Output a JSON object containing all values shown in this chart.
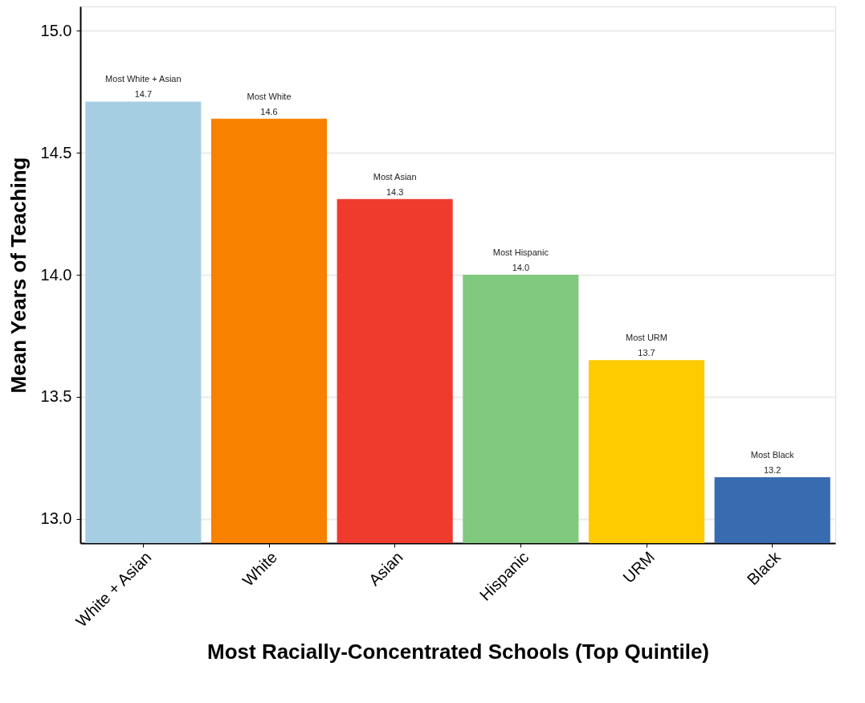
{
  "chart_data": {
    "type": "bar",
    "xlabel": "Most Racially-Concentrated Schools (Top Quintile)",
    "ylabel": "Mean Years of Teaching",
    "categories": [
      "White + Asian",
      "White",
      "Asian",
      "Hispanic",
      "URM",
      "Black"
    ],
    "values": [
      14.71,
      14.64,
      14.31,
      14.0,
      13.65,
      13.17
    ],
    "colors": [
      "#a6cee3",
      "#f98100",
      "#ee3b2e",
      "#80c97f",
      "#fdcb00",
      "#386cb0"
    ],
    "value_labels": [
      "14.7",
      "14.6",
      "14.3",
      "14.0",
      "13.7",
      "13.2"
    ],
    "annotations": [
      {
        "text": "Most White + Asian",
        "x": "White + Asian",
        "y": 14.71
      },
      {
        "text": "Most White",
        "x": "White",
        "y": 14.64
      },
      {
        "text": "Most Asian",
        "x": "Asian",
        "y": 14.31
      },
      {
        "text": "Most Hispanic",
        "x": "Hispanic",
        "y": 14.0
      },
      {
        "text": "Most URM",
        "x": "URM",
        "y": 13.65
      },
      {
        "text": "Most Black",
        "x": "Black",
        "y": 13.17
      }
    ],
    "ylim": [
      12.9,
      15.1
    ],
    "yticks": [
      {
        "value": 13,
        "label": "13.0"
      },
      {
        "value": 13.5,
        "label": "13.5"
      },
      {
        "value": 14,
        "label": "14.0"
      },
      {
        "value": 14.5,
        "label": "14.5"
      },
      {
        "value": 15,
        "label": "15.0"
      }
    ],
    "grid": "y"
  }
}
